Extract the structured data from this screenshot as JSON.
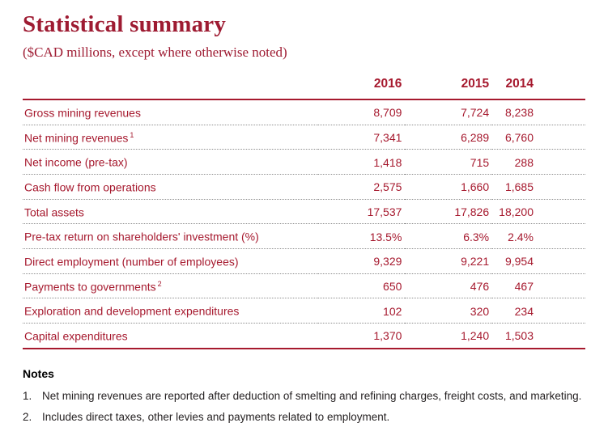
{
  "page": {
    "title": "Statistical summary",
    "subtitle": "($CAD millions, except where otherwise noted)"
  },
  "colors": {
    "accent": "#a6192e",
    "title": "#9e1b32",
    "notes_text": "#231f20"
  },
  "table": {
    "columns": [
      "2016",
      "2015",
      "2014"
    ],
    "rows": [
      {
        "label": "Gross mining revenues",
        "sup": "",
        "values": [
          "8,709",
          "7,724",
          "8,238"
        ]
      },
      {
        "label": "Net mining revenues",
        "sup": "1",
        "values": [
          "7,341",
          "6,289",
          "6,760"
        ]
      },
      {
        "label": "Net income (pre-tax)",
        "sup": "",
        "values": [
          "1,418",
          "715",
          "288"
        ]
      },
      {
        "label": "Cash flow from operations",
        "sup": "",
        "values": [
          "2,575",
          "1,660",
          "1,685"
        ]
      },
      {
        "label": "Total assets",
        "sup": "",
        "values": [
          "17,537",
          "17,826",
          "18,200"
        ]
      },
      {
        "label": "Pre-tax return on shareholders' investment (%)",
        "sup": "",
        "values": [
          "13.5%",
          "6.3%",
          "2.4%"
        ]
      },
      {
        "label": "Direct employment (number of employees)",
        "sup": "",
        "values": [
          "9,329",
          "9,221",
          "9,954"
        ]
      },
      {
        "label": "Payments to governments",
        "sup": "2",
        "values": [
          "650",
          "476",
          "467"
        ]
      },
      {
        "label": "Exploration and development expenditures",
        "sup": "",
        "values": [
          "102",
          "320",
          "234"
        ]
      },
      {
        "label": "Capital expenditures",
        "sup": "",
        "values": [
          "1,370",
          "1,240",
          "1,503"
        ]
      }
    ]
  },
  "notes": {
    "heading": "Notes",
    "items": [
      {
        "num": "1.",
        "text": "Net mining revenues are reported after deduction of smelting and refining charges, freight costs, and marketing."
      },
      {
        "num": "2.",
        "text": "Includes direct taxes, other levies and payments related to employment."
      }
    ]
  }
}
